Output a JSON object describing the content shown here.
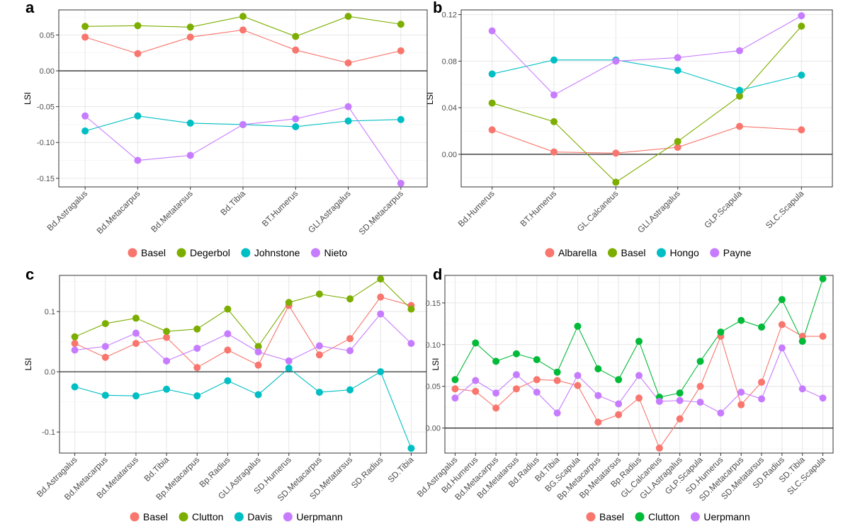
{
  "chart_data": [
    {
      "panel": "a",
      "type": "line",
      "ylabel": "LSI",
      "xlabel": "",
      "ylim": [
        -0.162,
        0.085
      ],
      "yticks": [
        -0.15,
        -0.1,
        -0.05,
        0.0,
        0.05
      ],
      "ytick_labels": [
        "-0.15",
        "-0.10",
        "-0.05",
        "0.00",
        "0.05"
      ],
      "hline": 0,
      "grid": true,
      "legend_position": "bottom",
      "categories": [
        "Bd.Astragalus",
        "Bd.Metacarpus",
        "Bd.Metatarsus",
        "Bd.Tibia",
        "BT.Humerus",
        "GLl.Astragalus",
        "SD.Metacarpus"
      ],
      "series": [
        {
          "name": "Basel",
          "color": "#F8766D",
          "values": [
            0.047,
            0.024,
            0.047,
            0.057,
            0.029,
            0.011,
            0.028
          ]
        },
        {
          "name": "Degerbol",
          "color": "#7CAE00",
          "values": [
            0.062,
            0.063,
            0.061,
            0.076,
            0.048,
            0.076,
            0.065
          ]
        },
        {
          "name": "Johnstone",
          "color": "#00BFC4",
          "values": [
            -0.084,
            -0.063,
            -0.073,
            -0.075,
            -0.078,
            -0.07,
            -0.068
          ]
        },
        {
          "name": "Nieto",
          "color": "#C77CFF",
          "values": [
            -0.063,
            -0.125,
            -0.118,
            -0.075,
            -0.067,
            -0.05,
            -0.157
          ]
        }
      ]
    },
    {
      "panel": "b",
      "type": "line",
      "ylabel": "LSI",
      "xlabel": "",
      "ylim": [
        -0.028,
        0.124
      ],
      "yticks": [
        0.0,
        0.04,
        0.08,
        0.12
      ],
      "ytick_labels": [
        "0.00",
        "0.04",
        "0.08",
        "0.12"
      ],
      "hline": 0,
      "grid": true,
      "legend_position": "bottom",
      "categories": [
        "Bd.Humerus",
        "BT.Humerus",
        "GL.Calcaneus",
        "GLl.Astragalus",
        "GLP.Scapula",
        "SLC.Scapula"
      ],
      "series": [
        {
          "name": "Albarella",
          "color": "#F8766D",
          "values": [
            0.021,
            0.002,
            0.001,
            0.006,
            0.024,
            0.021
          ]
        },
        {
          "name": "Basel",
          "color": "#7CAE00",
          "values": [
            0.044,
            0.028,
            -0.024,
            0.011,
            0.05,
            0.11
          ]
        },
        {
          "name": "Hongo",
          "color": "#00BFC4",
          "values": [
            0.069,
            0.081,
            0.081,
            0.072,
            0.055,
            0.068
          ]
        },
        {
          "name": "Payne",
          "color": "#C77CFF",
          "values": [
            0.106,
            0.051,
            0.08,
            0.083,
            0.089,
            0.119
          ]
        }
      ]
    },
    {
      "panel": "c",
      "type": "line",
      "ylabel": "LSI",
      "xlabel": "",
      "ylim": [
        -0.135,
        0.16
      ],
      "yticks": [
        -0.1,
        0.0,
        0.1
      ],
      "ytick_labels": [
        "-0.1",
        "0.0",
        "0.1"
      ],
      "hline": 0,
      "grid": true,
      "legend_position": "bottom",
      "categories": [
        "Bd.Astragalus",
        "Bd.Metacarpus",
        "Bd.Metatarsus",
        "Bd.Tibia",
        "Bp.Metacarpus",
        "Bp.Radius",
        "GLl.Astragalus",
        "SD.Humerus",
        "SD.Metacarpus",
        "SD.Metatarsus",
        "SD.Radius",
        "SD.Tibia"
      ],
      "series": [
        {
          "name": "Basel",
          "color": "#F8766D",
          "values": [
            0.047,
            0.024,
            0.047,
            0.057,
            0.007,
            0.036,
            0.011,
            0.11,
            0.028,
            0.055,
            0.124,
            0.11
          ]
        },
        {
          "name": "Clutton",
          "color": "#7CAE00",
          "values": [
            0.058,
            0.08,
            0.089,
            0.067,
            0.071,
            0.104,
            0.042,
            0.115,
            0.129,
            0.121,
            0.154,
            0.104
          ]
        },
        {
          "name": "Davis",
          "color": "#00BFC4",
          "values": [
            -0.025,
            -0.039,
            -0.04,
            -0.029,
            -0.04,
            -0.015,
            -0.038,
            0.006,
            -0.034,
            -0.03,
            0.0,
            -0.127
          ]
        },
        {
          "name": "Uerpmann",
          "color": "#C77CFF",
          "values": [
            0.036,
            0.042,
            0.064,
            0.018,
            0.039,
            0.063,
            0.033,
            0.018,
            0.043,
            0.035,
            0.096,
            0.047
          ]
        }
      ]
    },
    {
      "panel": "d",
      "type": "line",
      "ylabel": "LSI",
      "xlabel": "",
      "ylim": [
        -0.03,
        0.183
      ],
      "yticks": [
        0.0,
        0.05,
        0.1,
        0.15
      ],
      "ytick_labels": [
        "0.00",
        "0.05",
        "0.10",
        "0.15"
      ],
      "hline": 0,
      "grid": true,
      "legend_position": "bottom",
      "categories": [
        "Bd.Astragalus",
        "Bd.Humerus",
        "Bd.Metacarpus",
        "Bd.Metatarsus",
        "Bd.Radius",
        "Bd.Tibia",
        "BG.Scapula",
        "Bp.Metacarpus",
        "Bp.Metatarsus",
        "Bp.Radius",
        "GL.Calcaneus",
        "GLl.Astragalus",
        "GLP.Scapula",
        "SD.Humerus",
        "SD.Metacarpus",
        "SD.Metatarsus",
        "SD.Radius",
        "SD.Tibia",
        "SLC.Scapula"
      ],
      "series": [
        {
          "name": "Basel",
          "color": "#F8766D",
          "values": [
            0.047,
            0.044,
            0.024,
            0.047,
            0.058,
            0.057,
            0.051,
            0.007,
            0.016,
            0.036,
            -0.024,
            0.011,
            0.05,
            0.11,
            0.028,
            0.055,
            0.124,
            0.11,
            0.11
          ]
        },
        {
          "name": "Clutton",
          "color": "#00BA38",
          "values": [
            0.058,
            0.102,
            0.08,
            0.089,
            0.082,
            0.067,
            0.122,
            0.071,
            0.058,
            0.104,
            0.037,
            0.042,
            0.08,
            0.115,
            0.129,
            0.121,
            0.154,
            0.104,
            0.179
          ]
        },
        {
          "name": "Uerpmann",
          "color": "#C77CFF",
          "values": [
            0.036,
            0.057,
            0.042,
            0.064,
            0.043,
            0.018,
            0.063,
            0.039,
            0.029,
            0.063,
            0.032,
            0.033,
            0.031,
            0.018,
            0.043,
            0.035,
            0.096,
            0.047,
            0.036
          ]
        }
      ]
    }
  ]
}
